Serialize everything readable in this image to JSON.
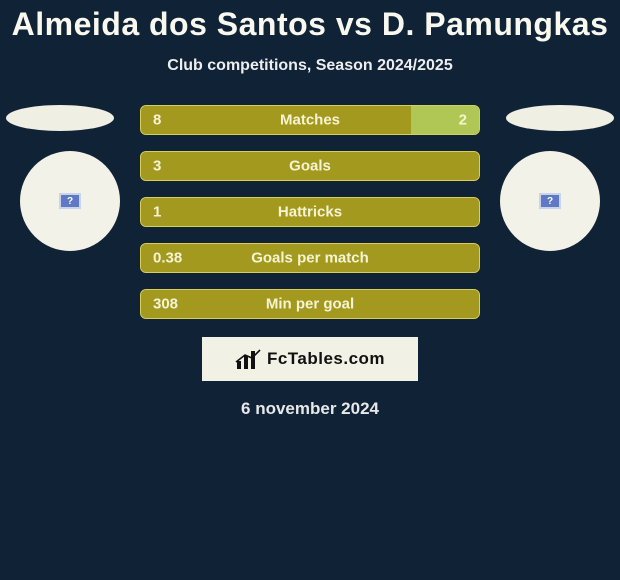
{
  "background_color": "#0f2236",
  "title": {
    "text": "Almeida dos Santos vs D. Pamungkas",
    "fontsize": 32,
    "color": "#f9f8ef"
  },
  "subtitle": {
    "text": "Club competitions, Season 2024/2025",
    "fontsize": 16,
    "color": "#eeeeee"
  },
  "shadow_color": "#f0efe3",
  "badge": {
    "bg": "#f3f2e9",
    "inner_bg": "#5f79c7",
    "inner_border": "#c9d3ea",
    "inner_fg": "#ffffff",
    "glyph": "?"
  },
  "bars": {
    "track_color": "#9a8f1e",
    "left_fill": "#a4991f",
    "right_fill": "#b0c755",
    "border_color": "#d8ce5f",
    "text_color": "#f5f4d2",
    "label_fontsize": 15,
    "value_fontsize": 15,
    "items": [
      {
        "label": "Matches",
        "left_val": "8",
        "right_val": "2",
        "left_pct": 80,
        "right_pct": 20
      },
      {
        "label": "Goals",
        "left_val": "3",
        "right_val": "",
        "left_pct": 100,
        "right_pct": 0
      },
      {
        "label": "Hattricks",
        "left_val": "1",
        "right_val": "",
        "left_pct": 100,
        "right_pct": 0
      },
      {
        "label": "Goals per match",
        "left_val": "0.38",
        "right_val": "",
        "left_pct": 100,
        "right_pct": 0
      },
      {
        "label": "Min per goal",
        "left_val": "308",
        "right_val": "",
        "left_pct": 100,
        "right_pct": 0
      }
    ]
  },
  "logo": {
    "box_bg": "#f2f1e5",
    "text": "FcTables.com",
    "text_color": "#111111",
    "fontsize": 17,
    "icon_color": "#111111"
  },
  "date": {
    "text": "6 november 2024",
    "fontsize": 17,
    "color": "#e8e8e8"
  }
}
